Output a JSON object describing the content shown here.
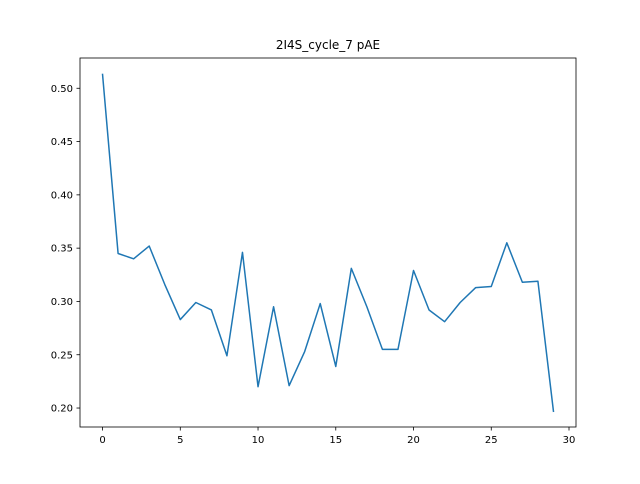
{
  "chart_data": {
    "type": "line",
    "title": "2I4S_cycle_7 pAE",
    "xlabel": "",
    "ylabel": "",
    "xlim": [
      -1.45,
      30.45
    ],
    "ylim": [
      0.1822,
      0.5284
    ],
    "x_ticks": [
      0,
      5,
      10,
      15,
      20,
      25,
      30
    ],
    "y_ticks": [
      0.2,
      0.25,
      0.3,
      0.35,
      0.4,
      0.45,
      0.5
    ],
    "x_tick_labels": [
      "0",
      "5",
      "10",
      "15",
      "20",
      "25",
      "30"
    ],
    "y_tick_labels": [
      "0.20",
      "0.25",
      "0.30",
      "0.35",
      "0.40",
      "0.45",
      "0.50"
    ],
    "grid": false,
    "legend": "none",
    "series": [
      {
        "color": "#1f77b4",
        "x": [
          0,
          1,
          2,
          3,
          4,
          5,
          6,
          7,
          8,
          9,
          10,
          11,
          12,
          13,
          14,
          15,
          16,
          17,
          18,
          19,
          20,
          21,
          22,
          23,
          24,
          25,
          26,
          27,
          28,
          29
        ],
        "values": [
          0.513,
          0.345,
          0.34,
          0.352,
          0.316,
          0.283,
          0.299,
          0.292,
          0.249,
          0.346,
          0.22,
          0.295,
          0.221,
          0.253,
          0.298,
          0.239,
          0.331,
          0.295,
          0.255,
          0.255,
          0.329,
          0.292,
          0.281,
          0.299,
          0.313,
          0.314,
          0.355,
          0.318,
          0.319,
          0.197
        ]
      }
    ]
  }
}
